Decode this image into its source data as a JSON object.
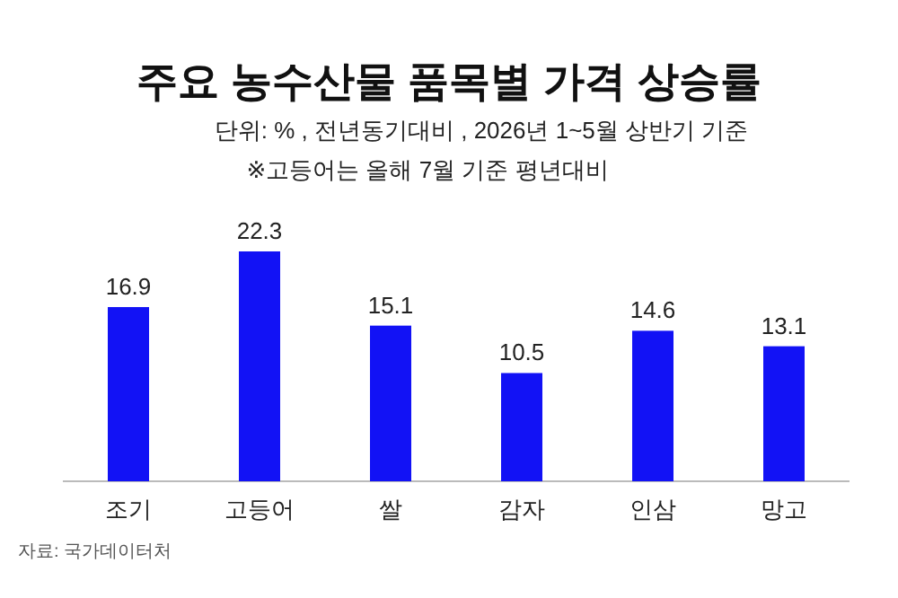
{
  "chart_data": {
    "type": "bar",
    "title": "주요 농수산물 품목별 가격 상승률",
    "subtitle": "단위: % , 전년동기대비 , 2026년 1~5월 상반기 기준",
    "categories": [
      "조기",
      "고등어",
      "쌀",
      "감자",
      "인삼",
      "망고"
    ],
    "values": [
      16.9,
      22.3,
      15.1,
      10.5,
      14.6,
      13.1
    ],
    "color": "#1212f5",
    "data_labels": true,
    "annotations": [
      "※고등어는 올해 7월 기준 평년대비",
      "자료: 국가데이터처"
    ]
  }
}
